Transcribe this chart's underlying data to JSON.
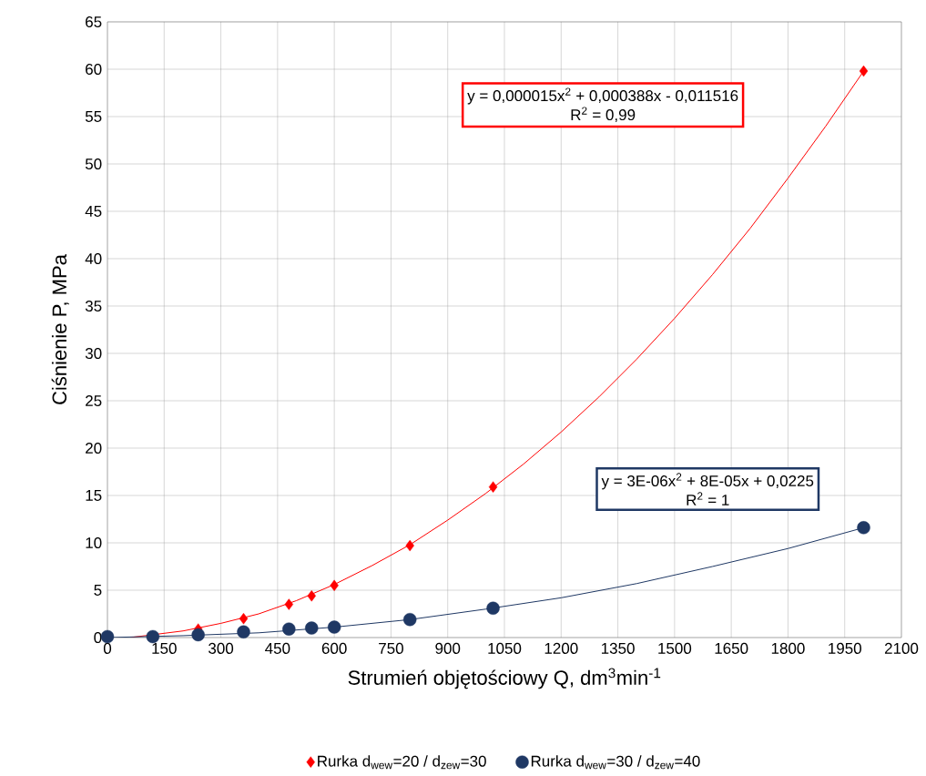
{
  "chart_data": {
    "type": "scatter",
    "xlabel": "Strumień objętościowy Q, dm$^{3}$min$^{-1}$",
    "ylabel": "Ciśnienie P, MPa",
    "xlim": [
      0,
      2100
    ],
    "xticks": [
      0,
      150,
      300,
      450,
      600,
      750,
      900,
      1050,
      1200,
      1350,
      1500,
      1650,
      1800,
      1950,
      2100
    ],
    "ylim": [
      0,
      65
    ],
    "yticks": [
      0,
      5,
      10,
      15,
      20,
      25,
      30,
      35,
      40,
      45,
      50,
      55,
      60,
      65
    ],
    "grid": true,
    "legend": "bottom",
    "annotations": [
      "y = 0,000015x$^{2}$ + 0,000388x - 0,011516",
      "R$^{2}$ = 0,99",
      "y = 3E-06x$^{2}$ + 8E-05x + 0,0225",
      "R$^{2}$ = 1"
    ],
    "series": [
      {
        "name": "Rurka d$_{wew}$=20 / d$_{zew}$=30",
        "marker": "diamond",
        "color": "#ff0000",
        "x": [
          240,
          360,
          480,
          540,
          600,
          800,
          1020,
          2000
        ],
        "values": [
          0.9,
          2.0,
          3.5,
          4.4,
          5.5,
          9.7,
          15.9,
          59.8
        ]
      },
      {
        "name": "Rurka d$_{wew}$=30 / d$_{zew}$=40",
        "marker": "circle",
        "color": "#1f3864",
        "x": [
          0,
          120,
          240,
          360,
          480,
          540,
          600,
          800,
          1020,
          2000
        ],
        "values": [
          0.1,
          0.1,
          0.3,
          0.6,
          0.9,
          1.0,
          1.1,
          1.9,
          3.1,
          11.6
        ]
      },
      {
        "type": "line",
        "marker": "none",
        "color": "#ff0000",
        "x": [
          60,
          100,
          200,
          300,
          400,
          500,
          600,
          700,
          800,
          900,
          1000,
          1100,
          1200,
          1300,
          1400,
          1500,
          1600,
          1700,
          1800,
          1900,
          2000
        ],
        "values": [
          0,
          0.2,
          0.7,
          1.5,
          2.5,
          3.9,
          5.6,
          7.6,
          9.8,
          12.4,
          15.2,
          18.3,
          21.7,
          25.4,
          29.4,
          33.7,
          38.3,
          43.2,
          48.5,
          54.0,
          59.8
        ]
      },
      {
        "type": "line",
        "marker": "none",
        "color": "#1f3864",
        "x": [
          0,
          200,
          400,
          600,
          800,
          1000,
          1200,
          1400,
          1600,
          1800,
          2000
        ],
        "values": [
          0,
          0.2,
          0.5,
          1.1,
          1.9,
          3.0,
          4.2,
          5.7,
          7.5,
          9.4,
          11.6
        ]
      }
    ]
  }
}
